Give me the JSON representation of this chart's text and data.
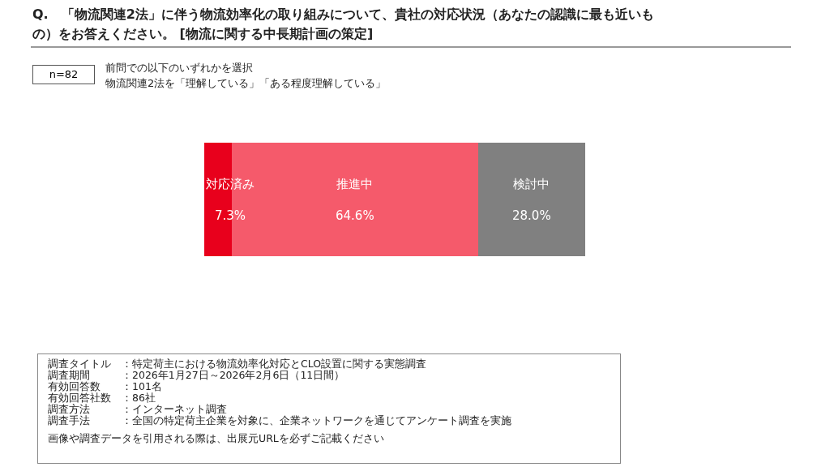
{
  "chart_data": {
    "type": "bar",
    "orientation": "horizontal",
    "stacked": true,
    "title": "Q.　「物流関連2法」に伴う物流効率化の取り組みについて、貴社の対応状況（あなたの認識に最も近いもの）をお答えください。 [物流に関する中長期計画の策定]",
    "subtitle": "前問での以下のいずれかを選択",
    "categories": [
      null
    ],
    "series": [
      {
        "name": "対応済み",
        "color": "#e8001c",
        "values": [
          7.3
        ],
        "value_labels": [
          "7.3%"
        ]
      },
      {
        "name": "推進中",
        "color": "#f55a6b",
        "values": [
          64.6
        ],
        "value_labels": [
          "64.6%"
        ]
      },
      {
        "name": "検討中",
        "color": "#808080",
        "values": [
          28.0
        ],
        "value_labels": [
          "28.0%"
        ]
      }
    ],
    "annotations": [
      "n=82",
      "物流関連2法を「理解している」「ある程度理解している」",
      "調査タイトル　：特定荷主における物流効率化対応とCLO設置に関する実態調査",
      "調査期間　　　：2026年1月27日～2026年2月6日（11日間）",
      "有効回答数　　：101名",
      "有効回答社数　：86社",
      "調査方法　　　：インターネット調査",
      "調査手法　　　：全国の特定荷主企業を対象に、企業ネットワークを通じてアンケート調査を実施",
      "画像や調査データを引用される際は、出展元URLを必ずご記載ください"
    ],
    "legend": false
  }
}
